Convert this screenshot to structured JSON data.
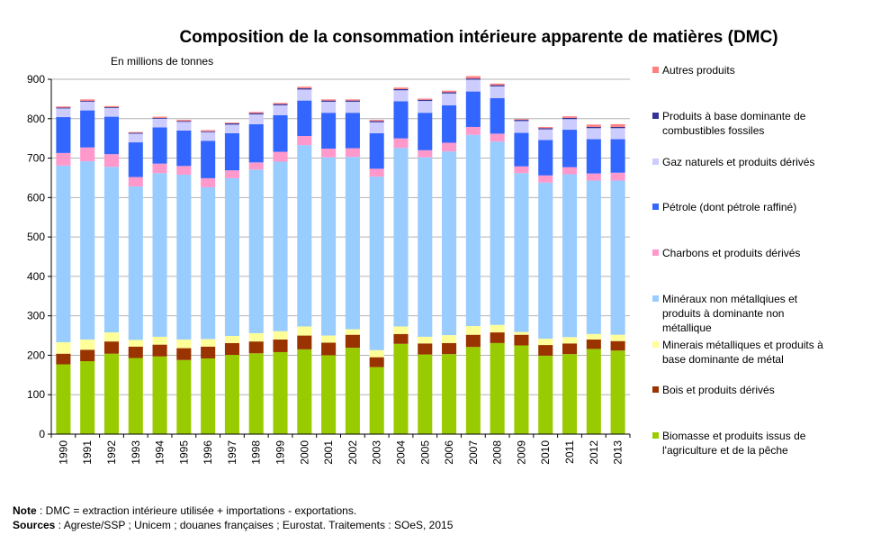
{
  "chart_data": {
    "type": "bar",
    "stacked": true,
    "title": "Composition de la consommation intérieure apparente de matières (DMC)",
    "subtitle": "En millions de tonnes",
    "xlabel": "",
    "ylabel": "",
    "ylim": [
      0,
      900
    ],
    "yticks": [
      0,
      100,
      200,
      300,
      400,
      500,
      600,
      700,
      800,
      900
    ],
    "grid": true,
    "legend_position": "right",
    "categories": [
      "1990",
      "1991",
      "1992",
      "1993",
      "1994",
      "1995",
      "1996",
      "1997",
      "1998",
      "1999",
      "2000",
      "2001",
      "2002",
      "2003",
      "2004",
      "2005",
      "2006",
      "2007",
      "2008",
      "2009",
      "2010",
      "2011",
      "2012",
      "2013"
    ],
    "series": [
      {
        "name": "Biomasse et produits issus de l'agriculture et de la pêche",
        "color": "#99cc00",
        "values": [
          177,
          185,
          204,
          193,
          197,
          188,
          192,
          201,
          205,
          208,
          215,
          200,
          219,
          170,
          229,
          202,
          203,
          221,
          231,
          225,
          199,
          203,
          216,
          212
        ]
      },
      {
        "name": "Bois et produits dérivés",
        "color": "#993300",
        "values": [
          27,
          29,
          31,
          29,
          30,
          30,
          30,
          30,
          30,
          32,
          35,
          32,
          33,
          25,
          25,
          28,
          28,
          31,
          27,
          27,
          27,
          27,
          24,
          24
        ]
      },
      {
        "name": "Minerais métalliques et produits à base dominante de métal",
        "color": "#ffff99",
        "values": [
          29,
          26,
          23,
          17,
          20,
          22,
          19,
          18,
          21,
          21,
          23,
          18,
          14,
          18,
          19,
          17,
          20,
          22,
          19,
          7,
          16,
          16,
          14,
          16
        ]
      },
      {
        "name": "Minéraux non métallqiues et produits à dominante non métallique",
        "color": "#99ccff",
        "values": [
          448,
          452,
          420,
          389,
          415,
          418,
          385,
          400,
          415,
          430,
          460,
          452,
          437,
          440,
          453,
          455,
          466,
          485,
          465,
          403,
          396,
          413,
          389,
          391
        ]
      },
      {
        "name": "Charbons et produits dérivés",
        "color": "#ff99cc",
        "values": [
          32,
          35,
          32,
          24,
          24,
          22,
          23,
          20,
          18,
          25,
          23,
          22,
          22,
          20,
          24,
          18,
          22,
          20,
          20,
          17,
          18,
          18,
          18,
          20
        ]
      },
      {
        "name": "Pétrole (dont pétrole raffiné)",
        "color": "#3366ff",
        "values": [
          91,
          94,
          95,
          88,
          92,
          90,
          95,
          94,
          97,
          93,
          90,
          91,
          90,
          90,
          94,
          95,
          95,
          90,
          90,
          85,
          90,
          95,
          87,
          85
        ]
      },
      {
        "name": "Gaz naturels et produits dérivés",
        "color": "#ccccff",
        "values": [
          22,
          22,
          22,
          22,
          22,
          22,
          22,
          22,
          25,
          25,
          28,
          28,
          28,
          28,
          28,
          30,
          30,
          30,
          30,
          30,
          27,
          27,
          28,
          28
        ]
      },
      {
        "name": "Produits à base dominante de combustibles fossiles",
        "color": "#333399",
        "values": [
          2,
          2,
          2,
          2,
          2,
          2,
          2,
          3,
          3,
          3,
          3,
          3,
          3,
          3,
          3,
          3,
          3,
          3,
          3,
          3,
          3,
          3,
          3,
          3
        ]
      },
      {
        "name": "Autres produits",
        "color": "#ff8080",
        "values": [
          3,
          4,
          3,
          2,
          3,
          3,
          3,
          2,
          3,
          3,
          4,
          3,
          3,
          3,
          4,
          3,
          4,
          6,
          4,
          2,
          3,
          4,
          6,
          7
        ]
      }
    ]
  },
  "legend_items": [
    {
      "lines": [
        "Autres produits"
      ],
      "color": "#ff8080"
    },
    {
      "lines": [
        "Produits à base dominante de",
        "combustibles fossiles"
      ],
      "color": "#333399"
    },
    {
      "lines": [
        "Gaz naturels et produits dérivés"
      ],
      "color": "#ccccff"
    },
    {
      "lines": [
        "Pétrole (dont pétrole raffiné)"
      ],
      "color": "#3366ff"
    },
    {
      "lines": [
        "Charbons et produits dérivés"
      ],
      "color": "#ff99cc"
    },
    {
      "lines": [
        "Minéraux non métallqiues et",
        "produits à dominante non",
        "métallique"
      ],
      "color": "#99ccff"
    },
    {
      "lines": [
        "Minerais métalliques et produits à",
        "base dominante de métal"
      ],
      "color": "#ffff99"
    },
    {
      "lines": [
        "Bois et produits dérivés"
      ],
      "color": "#993300"
    },
    {
      "lines": [
        "Biomasse et produits issus de",
        "l'agriculture et de la pêche"
      ],
      "color": "#99cc00"
    }
  ],
  "notes": {
    "note_label": "Note",
    "note_text": " : DMC = extraction intérieure utilisée + importations - exportations.",
    "sources_label": "Sources",
    "sources_text": " : Agreste/SSP ; Unicem ; douanes françaises ; Eurostat. Traitements : SOeS, 2015"
  }
}
